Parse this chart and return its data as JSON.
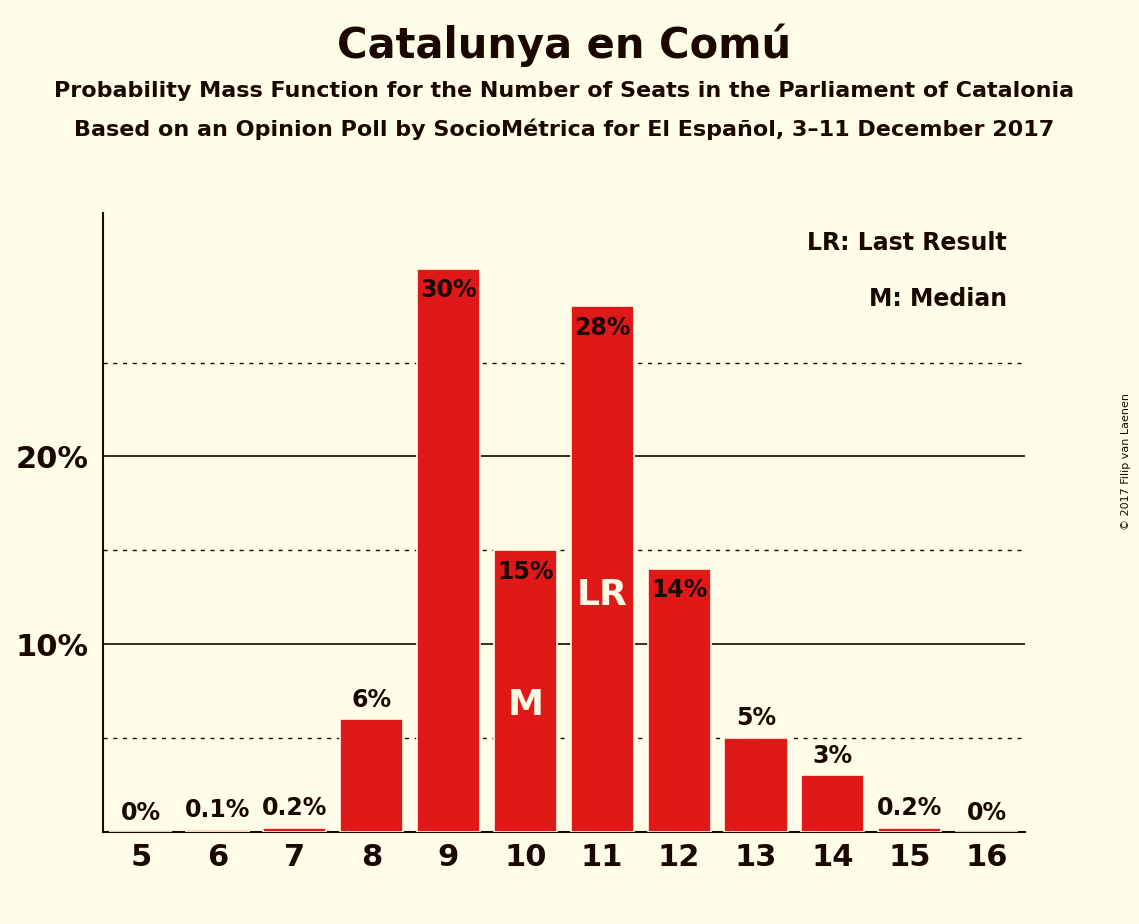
{
  "title": "Catalunya en Comú",
  "subtitle1": "Probability Mass Function for the Number of Seats in the Parliament of Catalonia",
  "subtitle2": "Based on an Opinion Poll by SocioMétrica for El Español, 3–11 December 2017",
  "copyright": "© 2017 Filip van Laenen",
  "seats": [
    5,
    6,
    7,
    8,
    9,
    10,
    11,
    12,
    13,
    14,
    15,
    16
  ],
  "probabilities": [
    0.0,
    0.1,
    0.2,
    6.0,
    30.0,
    15.0,
    28.0,
    14.0,
    5.0,
    3.0,
    0.2,
    0.0
  ],
  "bar_color": "#E01818",
  "background_color": "#FFFDE7",
  "text_color": "#1A0800",
  "label_color_inside": "#FFFDE7",
  "bar_labels": [
    "0%",
    "0.1%",
    "0.2%",
    "6%",
    "30%",
    "15%",
    "28%",
    "14%",
    "5%",
    "3%",
    "0.2%",
    "0%"
  ],
  "bar_label_inside_threshold": 8.0,
  "lr_seat": 11,
  "median_seat": 10,
  "solid_gridlines": [
    10.0,
    20.0
  ],
  "dotted_gridlines": [
    5.0,
    15.0,
    25.0
  ],
  "ylim": [
    0,
    33
  ],
  "legend_lr": "LR: Last Result",
  "legend_m": "M: Median",
  "title_fontsize": 30,
  "subtitle_fontsize": 16,
  "ytick_fontsize": 22,
  "xtick_fontsize": 22,
  "bar_label_fontsize": 17,
  "lr_m_fontsize": 26,
  "legend_fontsize": 17
}
